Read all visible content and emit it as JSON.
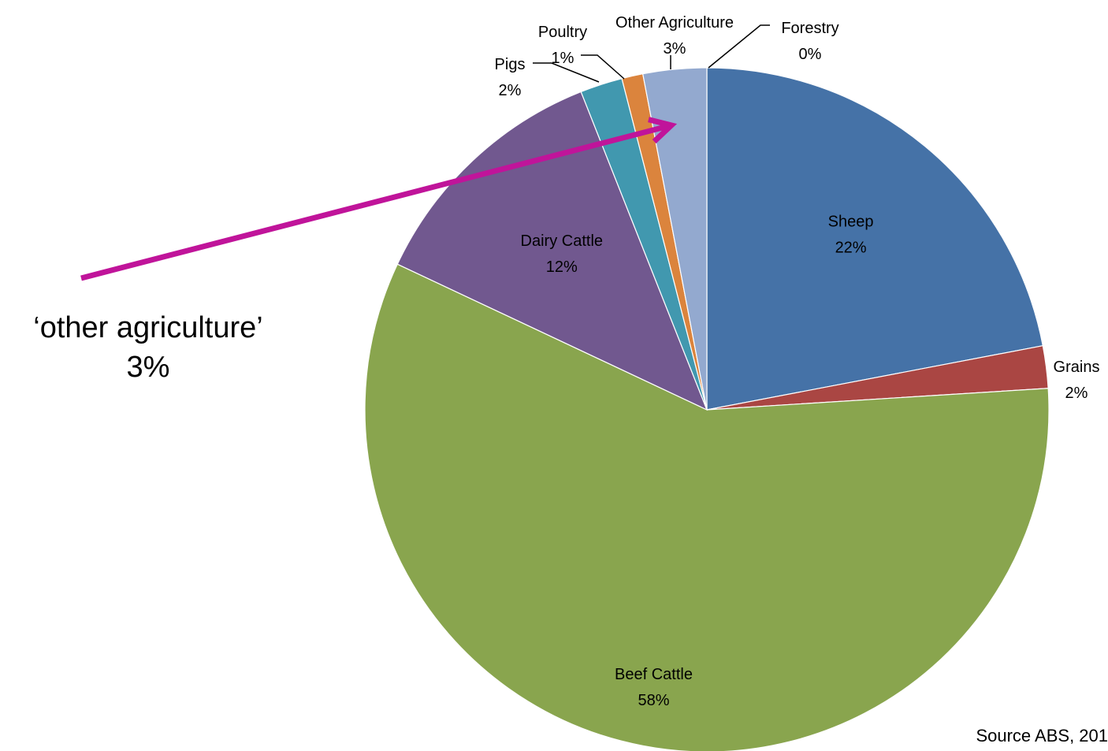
{
  "chart_data": {
    "type": "pie",
    "start_angle_deg": 0,
    "direction": "clockwise",
    "slices": [
      {
        "label": "Sheep",
        "value": 22,
        "pct_label": "22%",
        "color": "#4572A7"
      },
      {
        "label": "Grains",
        "value": 2,
        "pct_label": "2%",
        "color": "#AA4643"
      },
      {
        "label": "Beef Cattle",
        "value": 58,
        "pct_label": "58%",
        "color": "#89A54E"
      },
      {
        "label": "Dairy Cattle",
        "value": 12,
        "pct_label": "12%",
        "color": "#71588F"
      },
      {
        "label": "Pigs",
        "value": 2,
        "pct_label": "2%",
        "color": "#4198AF"
      },
      {
        "label": "Poultry",
        "value": 1,
        "pct_label": "1%",
        "color": "#DB843D"
      },
      {
        "label": "Other Agriculture",
        "value": 3,
        "pct_label": "3%",
        "color": "#93A9CF"
      },
      {
        "label": "Forestry",
        "value": 0,
        "pct_label": "0%",
        "color": "#4572A7"
      }
    ],
    "annotation": {
      "line1": "‘other agriculture’",
      "line2": "3%",
      "arrow_color": "#C0149A",
      "points_to": "Other Agriculture"
    },
    "source": "Source ABS, 201"
  }
}
